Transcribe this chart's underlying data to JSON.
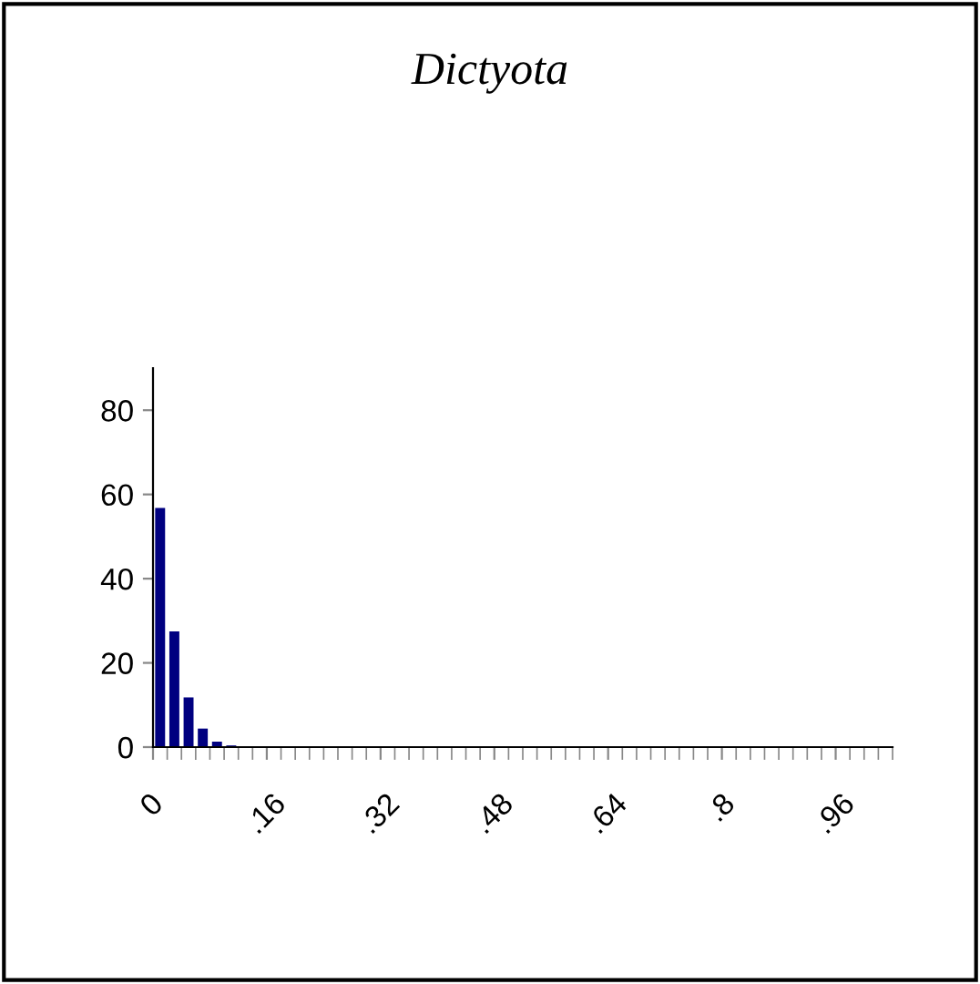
{
  "chart_data": {
    "type": "histogram",
    "title": "Dictyota",
    "bins": [
      0,
      0.02,
      0.04,
      0.06,
      0.08,
      0.1,
      0.12,
      0.14,
      0.16,
      0.18,
      0.2,
      0.22,
      0.24,
      0.26,
      0.28,
      0.3,
      0.32,
      0.34,
      0.36,
      0.38,
      0.4,
      0.42,
      0.44,
      0.46,
      0.48,
      0.5,
      0.52,
      0.54,
      0.56,
      0.58,
      0.6,
      0.62,
      0.64,
      0.66,
      0.68,
      0.7,
      0.72,
      0.74,
      0.76,
      0.78,
      0.8,
      0.82,
      0.84,
      0.86,
      0.88,
      0.9,
      0.92,
      0.94,
      0.96,
      0.98,
      1.0,
      1.02,
      1.04
    ],
    "values": [
      56.8,
      27.5,
      11.8,
      4.4,
      1.3,
      0.4,
      0,
      0,
      0,
      0,
      0,
      0,
      0,
      0,
      0,
      0,
      0,
      0,
      0,
      0,
      0,
      0,
      0,
      0,
      0,
      0,
      0,
      0,
      0,
      0,
      0,
      0,
      0,
      0,
      0,
      0,
      0,
      0,
      0,
      0,
      0,
      0,
      0,
      0,
      0,
      0,
      0,
      0,
      0,
      0,
      0,
      0
    ],
    "color": "#000080",
    "xlim": [
      0,
      1.04
    ],
    "ylim": [
      0,
      90
    ],
    "xticks": [
      {
        "value": 0,
        "label": "0"
      },
      {
        "value": 0.16,
        "label": ".16"
      },
      {
        "value": 0.32,
        "label": ".32"
      },
      {
        "value": 0.48,
        "label": ".48"
      },
      {
        "value": 0.64,
        "label": ".64"
      },
      {
        "value": 0.8,
        "label": ".8"
      },
      {
        "value": 0.96,
        "label": ".96"
      }
    ],
    "yticks": [
      0,
      20,
      40,
      60,
      80
    ],
    "grid": false
  }
}
